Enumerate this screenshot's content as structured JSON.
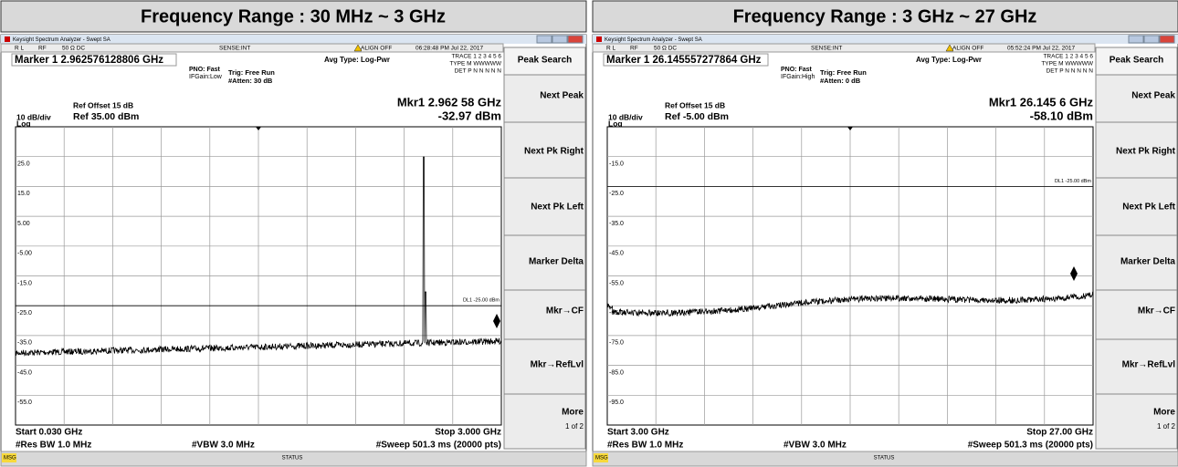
{
  "panels": [
    {
      "title": "Frequency Range : 30 MHz ~ 3 GHz",
      "window_title": "Keysight Spectrum Analyzer - Swept SA",
      "status_row": [
        "R L",
        "RF",
        "50 Ω  DC",
        "SENSE:INT",
        "ALIGN OFF",
        "06:28:48 PM Jul 22, 2017"
      ],
      "marker": "Marker 1 2.962576128806 GHz",
      "avg_type": "Avg Type: Log-Pwr",
      "pno": "PNO: Fast",
      "ifgain": "IFGain:Low",
      "trig": "Trig: Free Run",
      "atten": "#Atten: 30 dB",
      "trace_info": [
        "TRACE 1 2 3 4 5 6",
        "TYPE M WWWWW",
        "DET P N N N N N"
      ],
      "ref_offset": "Ref Offset 15 dB",
      "scale": "10 dB/div",
      "ref": "Ref 35.00 dBm",
      "log": "Log",
      "mkr_freq": "Mkr1 2.962 58 GHz",
      "mkr_amp": "-32.97 dBm",
      "y_labels": [
        "25.0",
        "15.0",
        "5.00",
        "-5.00",
        "-15.0",
        "-25.0",
        "-35.0",
        "-45.0",
        "-55.0"
      ],
      "display_line": "DL1 -25.00 dBm",
      "start": "Start 0.030 GHz",
      "stop": "Stop 3.000 GHz",
      "res_bw": "#Res BW 1.0 MHz",
      "vbw": "#VBW 3.0 MHz",
      "sweep": "#Sweep  501.3 ms (20000 pts)",
      "softkeys": [
        "Peak Search",
        "Next Peak",
        "Next Pk Right",
        "Next Pk Left",
        "Marker Delta",
        "Mkr→CF",
        "Mkr→RefLvl",
        "More",
        "1 of 2"
      ],
      "msg": "MSG",
      "status": "STATUS"
    },
    {
      "title": "Frequency Range : 3 GHz ~ 27 GHz",
      "window_title": "Keysight Spectrum Analyzer - Swept SA",
      "status_row": [
        "R L",
        "RF",
        "50 Ω  DC",
        "SENSE:INT",
        "ALIGN OFF",
        "05:52:24 PM Jul 22, 2017"
      ],
      "marker": "Marker 1 26.145557277864 GHz",
      "avg_type": "Avg Type: Log-Pwr",
      "pno": "PNO: Fast",
      "ifgain": "IFGain:High",
      "trig": "Trig: Free Run",
      "atten": "#Atten: 0 dB",
      "trace_info": [
        "TRACE 1 2 3 4 5 6",
        "TYPE M WWWWW",
        "DET P N N N N N"
      ],
      "ref_offset": "Ref Offset 15 dB",
      "scale": "10 dB/div",
      "ref": "Ref -5.00 dBm",
      "log": "Log",
      "mkr_freq": "Mkr1 26.145 6 GHz",
      "mkr_amp": "-58.10 dBm",
      "y_labels": [
        "-15.0",
        "-25.0",
        "-35.0",
        "-45.0",
        "-55.0",
        "-65.0",
        "-75.0",
        "-85.0",
        "-95.0"
      ],
      "display_line": "DL1 -25.00 dBm",
      "start": "Start 3.00 GHz",
      "stop": "Stop 27.00 GHz",
      "res_bw": "#Res BW 1.0 MHz",
      "vbw": "#VBW 3.0 MHz",
      "sweep": "#Sweep  501.3 ms (20000 pts)",
      "softkeys": [
        "Peak Search",
        "Next Peak",
        "Next Pk Right",
        "Next Pk Left",
        "Marker Delta",
        "Mkr→CF",
        "Mkr→RefLvl",
        "More",
        "1 of 2"
      ],
      "msg": "MSG",
      "status": "STATUS"
    }
  ]
}
